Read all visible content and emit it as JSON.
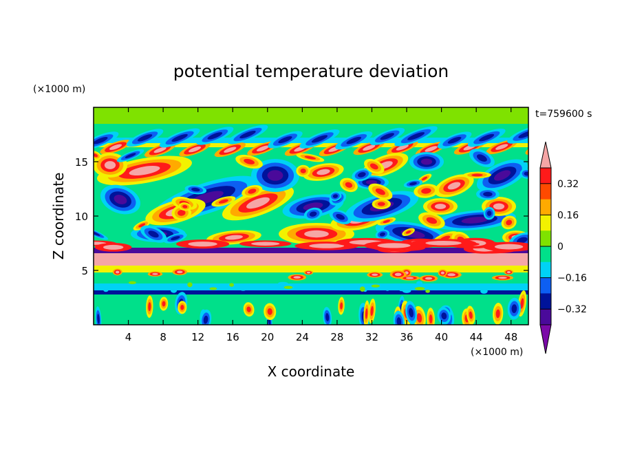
{
  "chart_data": {
    "type": "heatmap",
    "subtype": "filled-contour",
    "title": "potential temperature deviation",
    "xlabel": "X coordinate",
    "ylabel": "Z coordinate",
    "x_unit": "(×1000 m)",
    "y_unit": "(×1000 m)",
    "time_label": "t=759600 s",
    "xlim": [
      0,
      50
    ],
    "ylim": [
      0,
      20
    ],
    "xticks": [
      4,
      8,
      12,
      16,
      20,
      24,
      28,
      32,
      36,
      40,
      44,
      48
    ],
    "yticks": [
      5,
      10,
      15
    ],
    "colorbar": {
      "levels": [
        -0.4,
        -0.32,
        -0.24,
        -0.16,
        -0.08,
        0,
        0.08,
        0.16,
        0.24,
        0.32,
        0.4
      ],
      "colors": [
        "#7b0aa8",
        "#4a0a9a",
        "#00139a",
        "#0d5ff2",
        "#00d2f5",
        "#00e08a",
        "#7fe200",
        "#f2f200",
        "#ffaa00",
        "#ff4a00",
        "#ff1a1a",
        "#f5a6a6"
      ],
      "tick_labels": [
        "0.32",
        "0.16",
        "0",
        "-0.16",
        "-0.32"
      ],
      "tick_values": [
        0.32,
        0.16,
        0,
        -0.16,
        -0.32
      ],
      "extend": "both"
    }
  }
}
